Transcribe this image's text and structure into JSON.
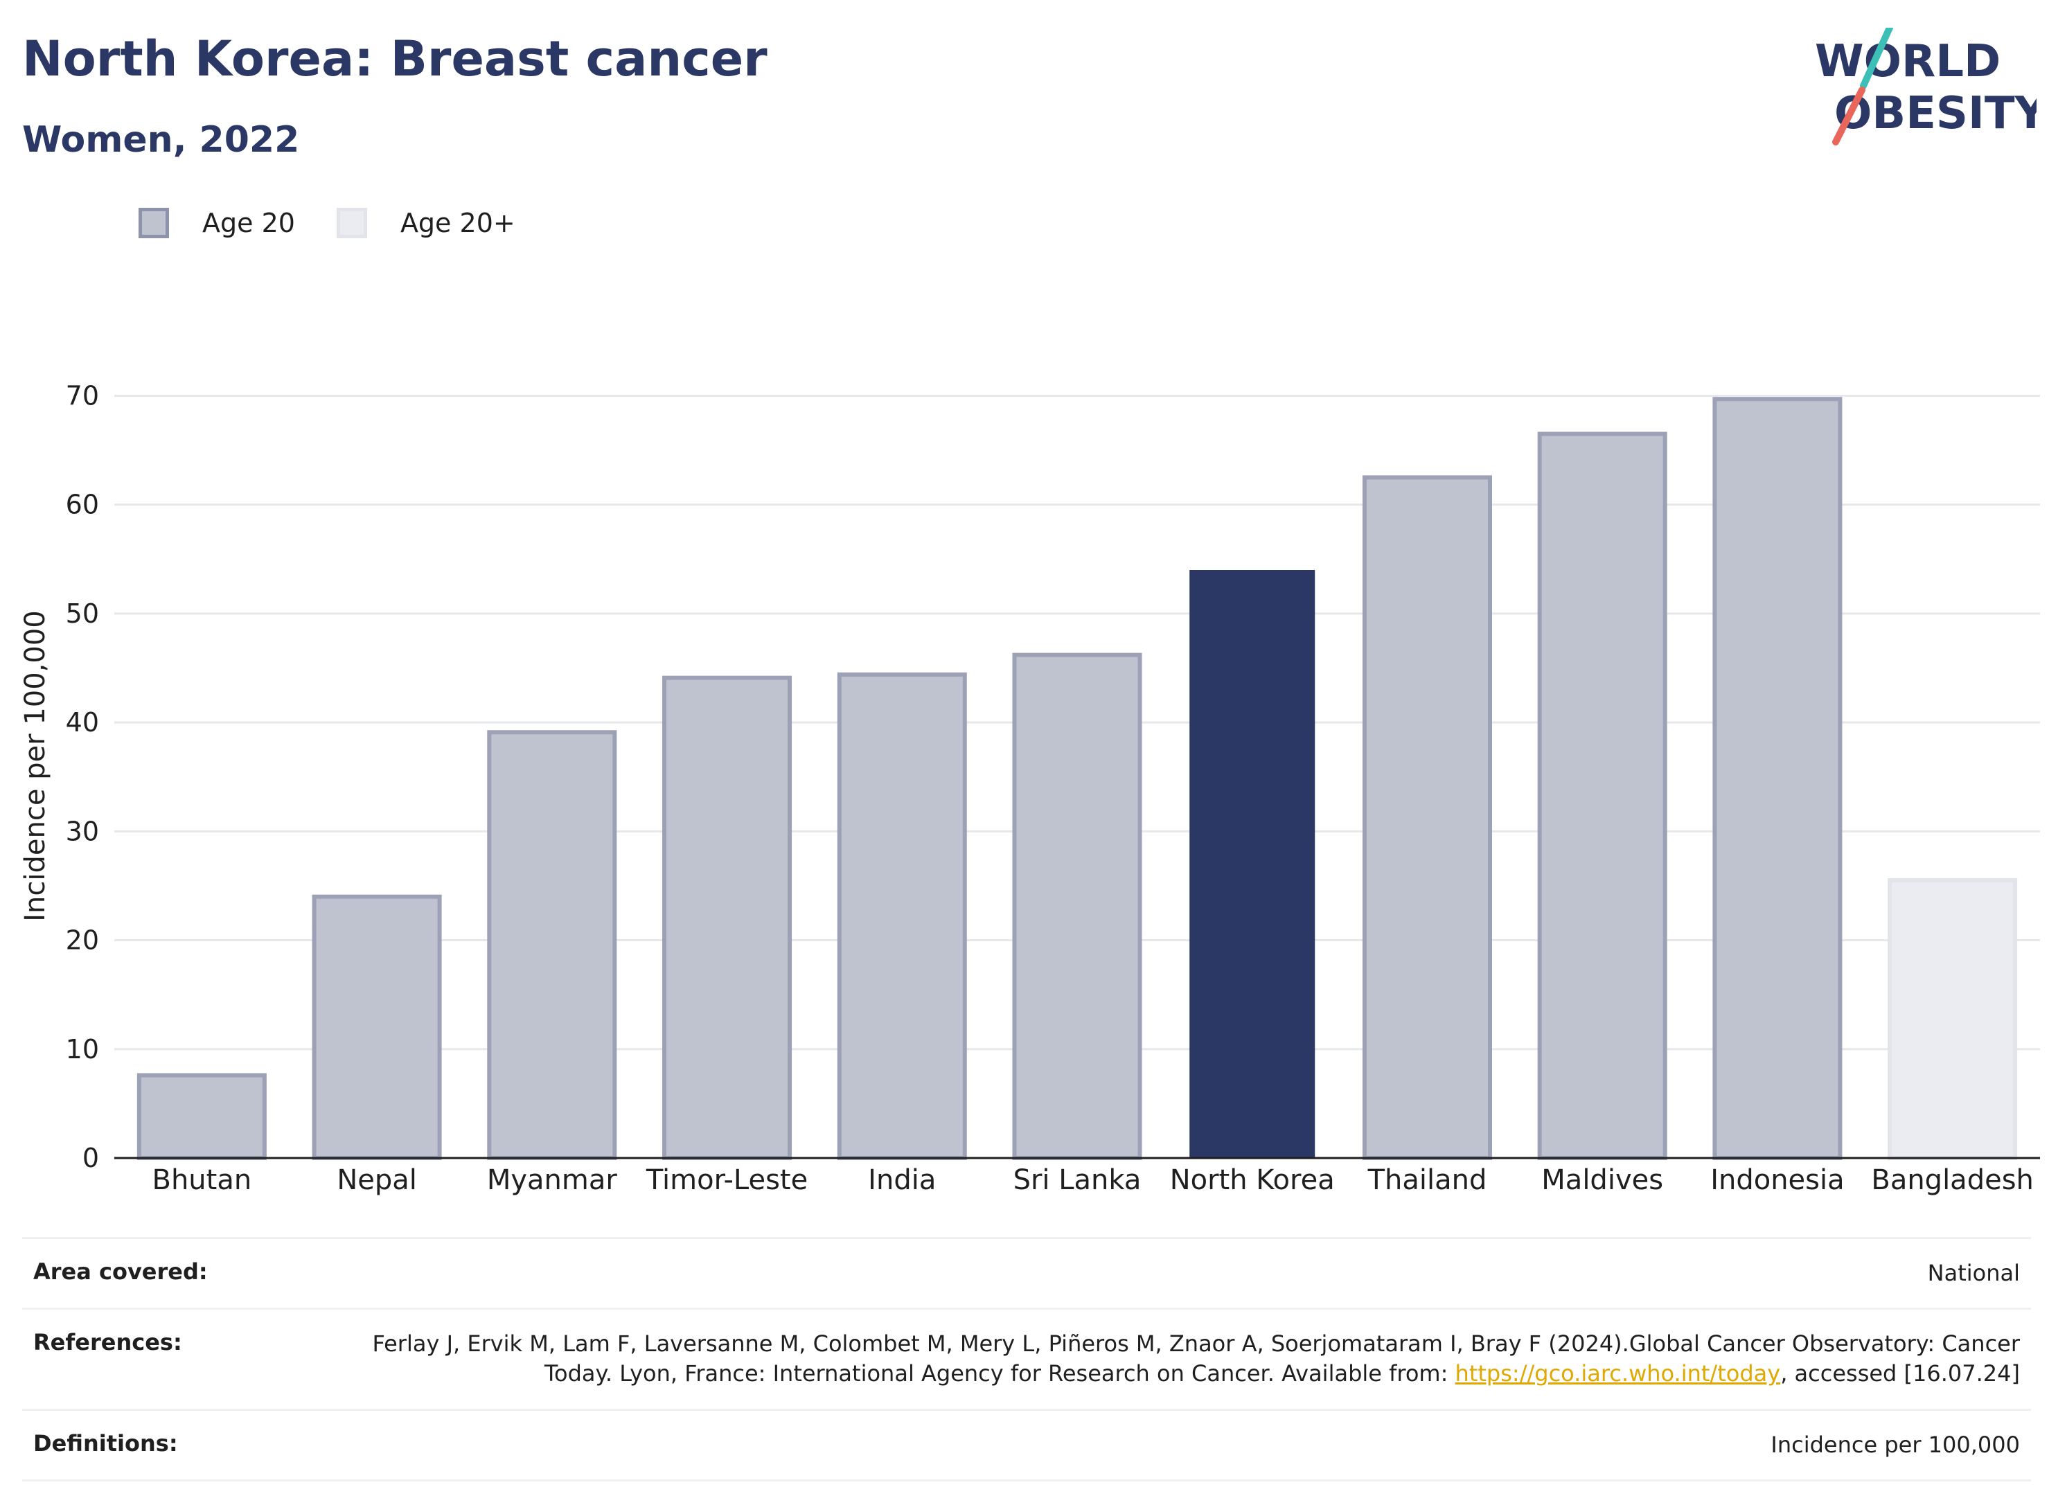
{
  "header": {
    "title": "North Korea: Breast cancer",
    "subtitle": "Women, 2022"
  },
  "logo": {
    "line1": "WORLD",
    "line2": "OBESITY"
  },
  "legend": [
    {
      "label": "Age 20",
      "color": "#bfc3d0"
    },
    {
      "label": "Age 20+",
      "color": "#ebecf1"
    }
  ],
  "chart_data": {
    "type": "bar",
    "ylabel": "Incidence per 100,000",
    "ylim": [
      0,
      72
    ],
    "yticks": [
      0,
      10,
      20,
      30,
      40,
      50,
      60,
      70
    ],
    "grid": true,
    "legend_position": "top-left",
    "categories": [
      "Bhutan",
      "Nepal",
      "Myanmar",
      "Timor-Leste",
      "India",
      "Sri Lanka",
      "North Korea",
      "Thailand",
      "Maldives",
      "Indonesia",
      "Bangladesh"
    ],
    "values": [
      7.6,
      24.0,
      39.1,
      44.1,
      44.4,
      46.2,
      54.0,
      62.5,
      66.5,
      69.7,
      25.5
    ],
    "groups": [
      "Age 20",
      "Age 20",
      "Age 20",
      "Age 20",
      "Age 20",
      "Age 20",
      "Age 20",
      "Age 20",
      "Age 20",
      "Age 20",
      "Age 20+"
    ],
    "highlight": "North Korea",
    "colors": {
      "age20_fill": "#bfc3d0",
      "age20_stroke": "#9ca1b6",
      "age20plus_fill": "#ebecf1",
      "age20plus_stroke": "#e2e4ea",
      "highlight": "#2b3764"
    }
  },
  "info": {
    "area_label": "Area covered:",
    "area_value": "National",
    "ref_label": "References:",
    "ref_text_1": "Ferlay J, Ervik M, Lam F, Laversanne M, Colombet M, Mery L, Piñeros M, Znaor A, Soerjomataram I, Bray F (2024).Global Cancer Observatory: Cancer Today. Lyon, France: International Agency for Research on Cancer. Available from: ",
    "ref_link": "https://gco.iarc.who.int/today",
    "ref_text_2": ", accessed [16.07.24]",
    "def_label": "Definitions:",
    "def_value": "Incidence per 100,000"
  }
}
